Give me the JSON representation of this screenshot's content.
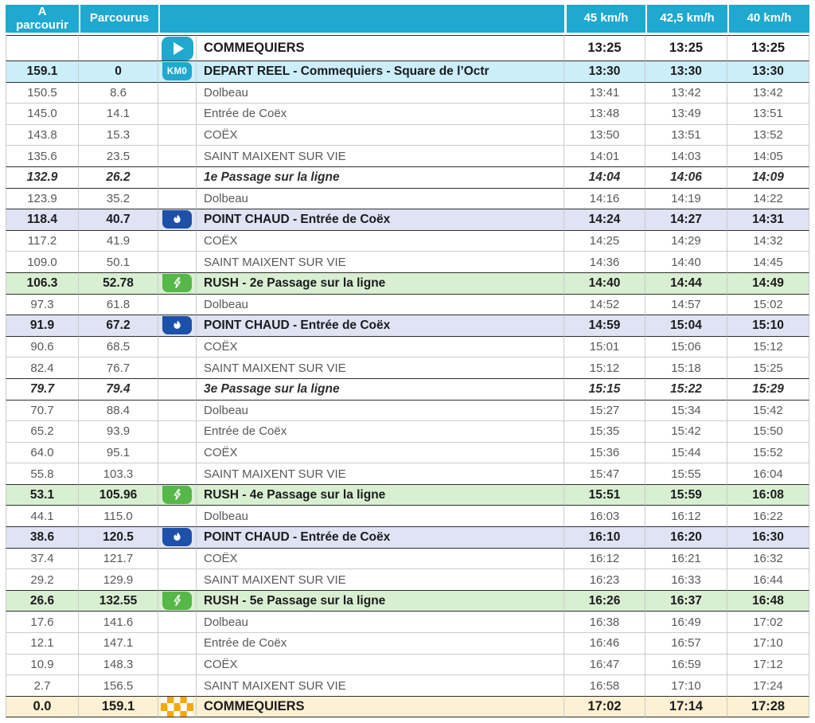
{
  "colors": {
    "header_teal": "#1FA8D0",
    "depart_row_blue": "#CBEEFA",
    "point_chaud_lavender": "#DFE3F4",
    "rush_green": "#D9EFD1",
    "finish_cream": "#FCF1D2",
    "flame_badge_blue": "#1D51A9",
    "bolt_badge_green": "#55B848",
    "checker_orange": "#F6A80B"
  },
  "icons": {
    "km0_label": "KM0",
    "play": "play-icon",
    "km0": "km0-icon",
    "flame": "flame-icon",
    "bolt": "lightning-icon",
    "checker": "checkered-flag-icon"
  },
  "table": {
    "headers": {
      "to_go": "A parcourir",
      "covered": "Parcourus",
      "speed45": "45 km/h",
      "speed425": "42,5 km/h",
      "speed40": "40 km/h"
    },
    "rows": [
      {
        "type": "start",
        "to_go": "",
        "covered": "",
        "icon": "play",
        "name": "COMMEQUIERS",
        "times": [
          "13:25",
          "13:25",
          "13:25"
        ]
      },
      {
        "type": "depart",
        "to_go": "159.1",
        "covered": "0",
        "icon": "km0",
        "name": "DEPART REEL - Commequiers - Square de l’Octr",
        "times": [
          "13:30",
          "13:30",
          "13:30"
        ]
      },
      {
        "type": "normal",
        "to_go": "150.5",
        "covered": "8.6",
        "icon": "",
        "name": "Dolbeau",
        "times": [
          "13:41",
          "13:42",
          "13:42"
        ]
      },
      {
        "type": "normal",
        "to_go": "145.0",
        "covered": "14.1",
        "icon": "",
        "name": "Entrée de Coëx",
        "times": [
          "13:48",
          "13:49",
          "13:51"
        ]
      },
      {
        "type": "normal",
        "to_go": "143.8",
        "covered": "15.3",
        "icon": "",
        "name": "COËX",
        "times": [
          "13:50",
          "13:51",
          "13:52"
        ]
      },
      {
        "type": "normal",
        "to_go": "135.6",
        "covered": "23.5",
        "icon": "",
        "name": "SAINT MAIXENT SUR VIE",
        "times": [
          "14:01",
          "14:03",
          "14:05"
        ]
      },
      {
        "type": "passage",
        "to_go": "132.9",
        "covered": "26.2",
        "icon": "",
        "name": "1e Passage sur la ligne",
        "times": [
          "14:04",
          "14:06",
          "14:09"
        ]
      },
      {
        "type": "normal",
        "to_go": "123.9",
        "covered": "35.2",
        "icon": "",
        "name": "Dolbeau",
        "times": [
          "14:16",
          "14:19",
          "14:22"
        ]
      },
      {
        "type": "pointchaud",
        "to_go": "118.4",
        "covered": "40.7",
        "icon": "flame",
        "name": "POINT CHAUD - Entrée de Coëx",
        "times": [
          "14:24",
          "14:27",
          "14:31"
        ]
      },
      {
        "type": "normal",
        "to_go": "117.2",
        "covered": "41.9",
        "icon": "",
        "name": "COËX",
        "times": [
          "14:25",
          "14:29",
          "14:32"
        ]
      },
      {
        "type": "normal",
        "to_go": "109.0",
        "covered": "50.1",
        "icon": "",
        "name": "SAINT MAIXENT SUR VIE",
        "times": [
          "14:36",
          "14:40",
          "14:45"
        ]
      },
      {
        "type": "rush",
        "to_go": "106.3",
        "covered": "52.78",
        "icon": "bolt",
        "name": "RUSH - 2e Passage sur la ligne",
        "times": [
          "14:40",
          "14:44",
          "14:49"
        ]
      },
      {
        "type": "normal",
        "to_go": "97.3",
        "covered": "61.8",
        "icon": "",
        "name": "Dolbeau",
        "times": [
          "14:52",
          "14:57",
          "15:02"
        ]
      },
      {
        "type": "pointchaud",
        "to_go": "91.9",
        "covered": "67.2",
        "icon": "flame",
        "name": "POINT CHAUD - Entrée de Coëx",
        "times": [
          "14:59",
          "15:04",
          "15:10"
        ]
      },
      {
        "type": "normal",
        "to_go": "90.6",
        "covered": "68.5",
        "icon": "",
        "name": "COËX",
        "times": [
          "15:01",
          "15:06",
          "15:12"
        ]
      },
      {
        "type": "normal",
        "to_go": "82.4",
        "covered": "76.7",
        "icon": "",
        "name": "SAINT MAIXENT SUR VIE",
        "times": [
          "15:12",
          "15:18",
          "15:25"
        ]
      },
      {
        "type": "passage",
        "to_go": "79.7",
        "covered": "79.4",
        "icon": "",
        "name": "3e Passage sur la ligne",
        "times": [
          "15:15",
          "15:22",
          "15:29"
        ]
      },
      {
        "type": "normal",
        "to_go": "70.7",
        "covered": "88.4",
        "icon": "",
        "name": "Dolbeau",
        "times": [
          "15:27",
          "15:34",
          "15:42"
        ]
      },
      {
        "type": "normal",
        "to_go": "65.2",
        "covered": "93.9",
        "icon": "",
        "name": "Entrée de Coëx",
        "times": [
          "15:35",
          "15:42",
          "15:50"
        ]
      },
      {
        "type": "normal",
        "to_go": "64.0",
        "covered": "95.1",
        "icon": "",
        "name": "COËX",
        "times": [
          "15:36",
          "15:44",
          "15:52"
        ]
      },
      {
        "type": "normal",
        "to_go": "55.8",
        "covered": "103.3",
        "icon": "",
        "name": "SAINT MAIXENT SUR VIE",
        "times": [
          "15:47",
          "15:55",
          "16:04"
        ]
      },
      {
        "type": "rush",
        "to_go": "53.1",
        "covered": "105.96",
        "icon": "bolt",
        "name": "RUSH - 4e Passage sur la ligne",
        "times": [
          "15:51",
          "15:59",
          "16:08"
        ]
      },
      {
        "type": "normal",
        "to_go": "44.1",
        "covered": "115.0",
        "icon": "",
        "name": "Dolbeau",
        "times": [
          "16:03",
          "16:12",
          "16:22"
        ]
      },
      {
        "type": "pointchaud",
        "to_go": "38.6",
        "covered": "120.5",
        "icon": "flame",
        "name": "POINT CHAUD - Entrée de Coëx",
        "times": [
          "16:10",
          "16:20",
          "16:30"
        ]
      },
      {
        "type": "normal",
        "to_go": "37.4",
        "covered": "121.7",
        "icon": "",
        "name": "COËX",
        "times": [
          "16:12",
          "16:21",
          "16:32"
        ]
      },
      {
        "type": "normal",
        "to_go": "29.2",
        "covered": "129.9",
        "icon": "",
        "name": "SAINT MAIXENT SUR VIE",
        "times": [
          "16:23",
          "16:33",
          "16:44"
        ]
      },
      {
        "type": "rush",
        "to_go": "26.6",
        "covered": "132.55",
        "icon": "bolt",
        "name": "RUSH - 5e Passage sur la ligne",
        "times": [
          "16:26",
          "16:37",
          "16:48"
        ]
      },
      {
        "type": "normal",
        "to_go": "17.6",
        "covered": "141.6",
        "icon": "",
        "name": "Dolbeau",
        "times": [
          "16:38",
          "16:49",
          "17:02"
        ]
      },
      {
        "type": "normal",
        "to_go": "12.1",
        "covered": "147.1",
        "icon": "",
        "name": "Entrée de Coëx",
        "times": [
          "16:46",
          "16:57",
          "17:10"
        ]
      },
      {
        "type": "normal",
        "to_go": "10.9",
        "covered": "148.3",
        "icon": "",
        "name": "COËX",
        "times": [
          "16:47",
          "16:59",
          "17:12"
        ]
      },
      {
        "type": "normal",
        "to_go": "2.7",
        "covered": "156.5",
        "icon": "",
        "name": "SAINT MAIXENT SUR VIE",
        "times": [
          "16:58",
          "17:10",
          "17:24"
        ]
      },
      {
        "type": "finish",
        "to_go": "0.0",
        "covered": "159.1",
        "icon": "checker",
        "name": "COMMEQUIERS",
        "times": [
          "17:02",
          "17:14",
          "17:28"
        ]
      }
    ]
  }
}
